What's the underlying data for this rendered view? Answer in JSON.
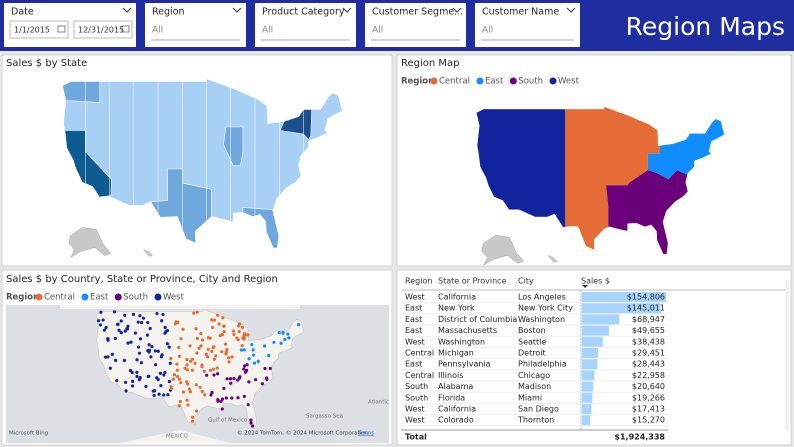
{
  "header": {
    "title": "Region Maps"
  },
  "filters": [
    {
      "label": "Date",
      "start": "1/1/2015",
      "end": "12/31/2015"
    },
    {
      "label": "Region",
      "value": "All"
    },
    {
      "label": "Product Category",
      "value": "All"
    },
    {
      "label": "Customer Segme...",
      "value": "All"
    },
    {
      "label": "Customer Name",
      "value": "All"
    }
  ],
  "panels": {
    "sales_by_state": {
      "title": "Sales $ by State"
    },
    "region_map": {
      "title": "Region Map",
      "legend_title": "Region",
      "legend": [
        {
          "name": "Central",
          "color": "#e66c37"
        },
        {
          "name": "East",
          "color": "#118dff"
        },
        {
          "name": "South",
          "color": "#6b007b"
        },
        {
          "name": "West",
          "color": "#12239e"
        }
      ]
    },
    "point_map": {
      "title": "Sales $ by Country, State or Province, City and Region",
      "legend_title": "Region",
      "legend": [
        {
          "name": "Central",
          "color": "#e66c37"
        },
        {
          "name": "East",
          "color": "#118dff"
        },
        {
          "name": "South",
          "color": "#6b007b"
        },
        {
          "name": "West",
          "color": "#12239e"
        }
      ],
      "attribution": "Microsoft Bing",
      "copyright": "© 2024 TomTom, © 2024 Microsoft Corporation",
      "terms": "Terms",
      "places": [
        "Gulf of Mexico",
        "Sargasso Sea",
        "MEXICO",
        "Atlantic"
      ]
    }
  },
  "table": {
    "columns": [
      "Region",
      "State or Province",
      "City",
      "Sales $"
    ],
    "rows": [
      [
        "West",
        "California",
        "Los Angeles",
        "$154,806"
      ],
      [
        "East",
        "New York",
        "New York City",
        "$145,011"
      ],
      [
        "East",
        "District of Columbia",
        "Washington",
        "$68,947"
      ],
      [
        "East",
        "Massachusetts",
        "Boston",
        "$49,655"
      ],
      [
        "West",
        "Washington",
        "Seattle",
        "$38,438"
      ],
      [
        "Central",
        "Michigan",
        "Detroit",
        "$29,451"
      ],
      [
        "East",
        "Pennsylvania",
        "Philadelphia",
        "$28,443"
      ],
      [
        "Central",
        "Illinois",
        "Chicago",
        "$22,958"
      ],
      [
        "South",
        "Alabama",
        "Madison",
        "$20,640"
      ],
      [
        "South",
        "Florida",
        "Miami",
        "$19,266"
      ],
      [
        "West",
        "California",
        "San Diego",
        "$17,413"
      ],
      [
        "West",
        "Colorado",
        "Thornton",
        "$15,270"
      ]
    ],
    "sales": [
      154806,
      145011,
      68947,
      49655,
      38438,
      29451,
      28443,
      22958,
      20640,
      19266,
      17413,
      15270
    ],
    "total_label": "Total",
    "total": "$1,924,338"
  }
}
